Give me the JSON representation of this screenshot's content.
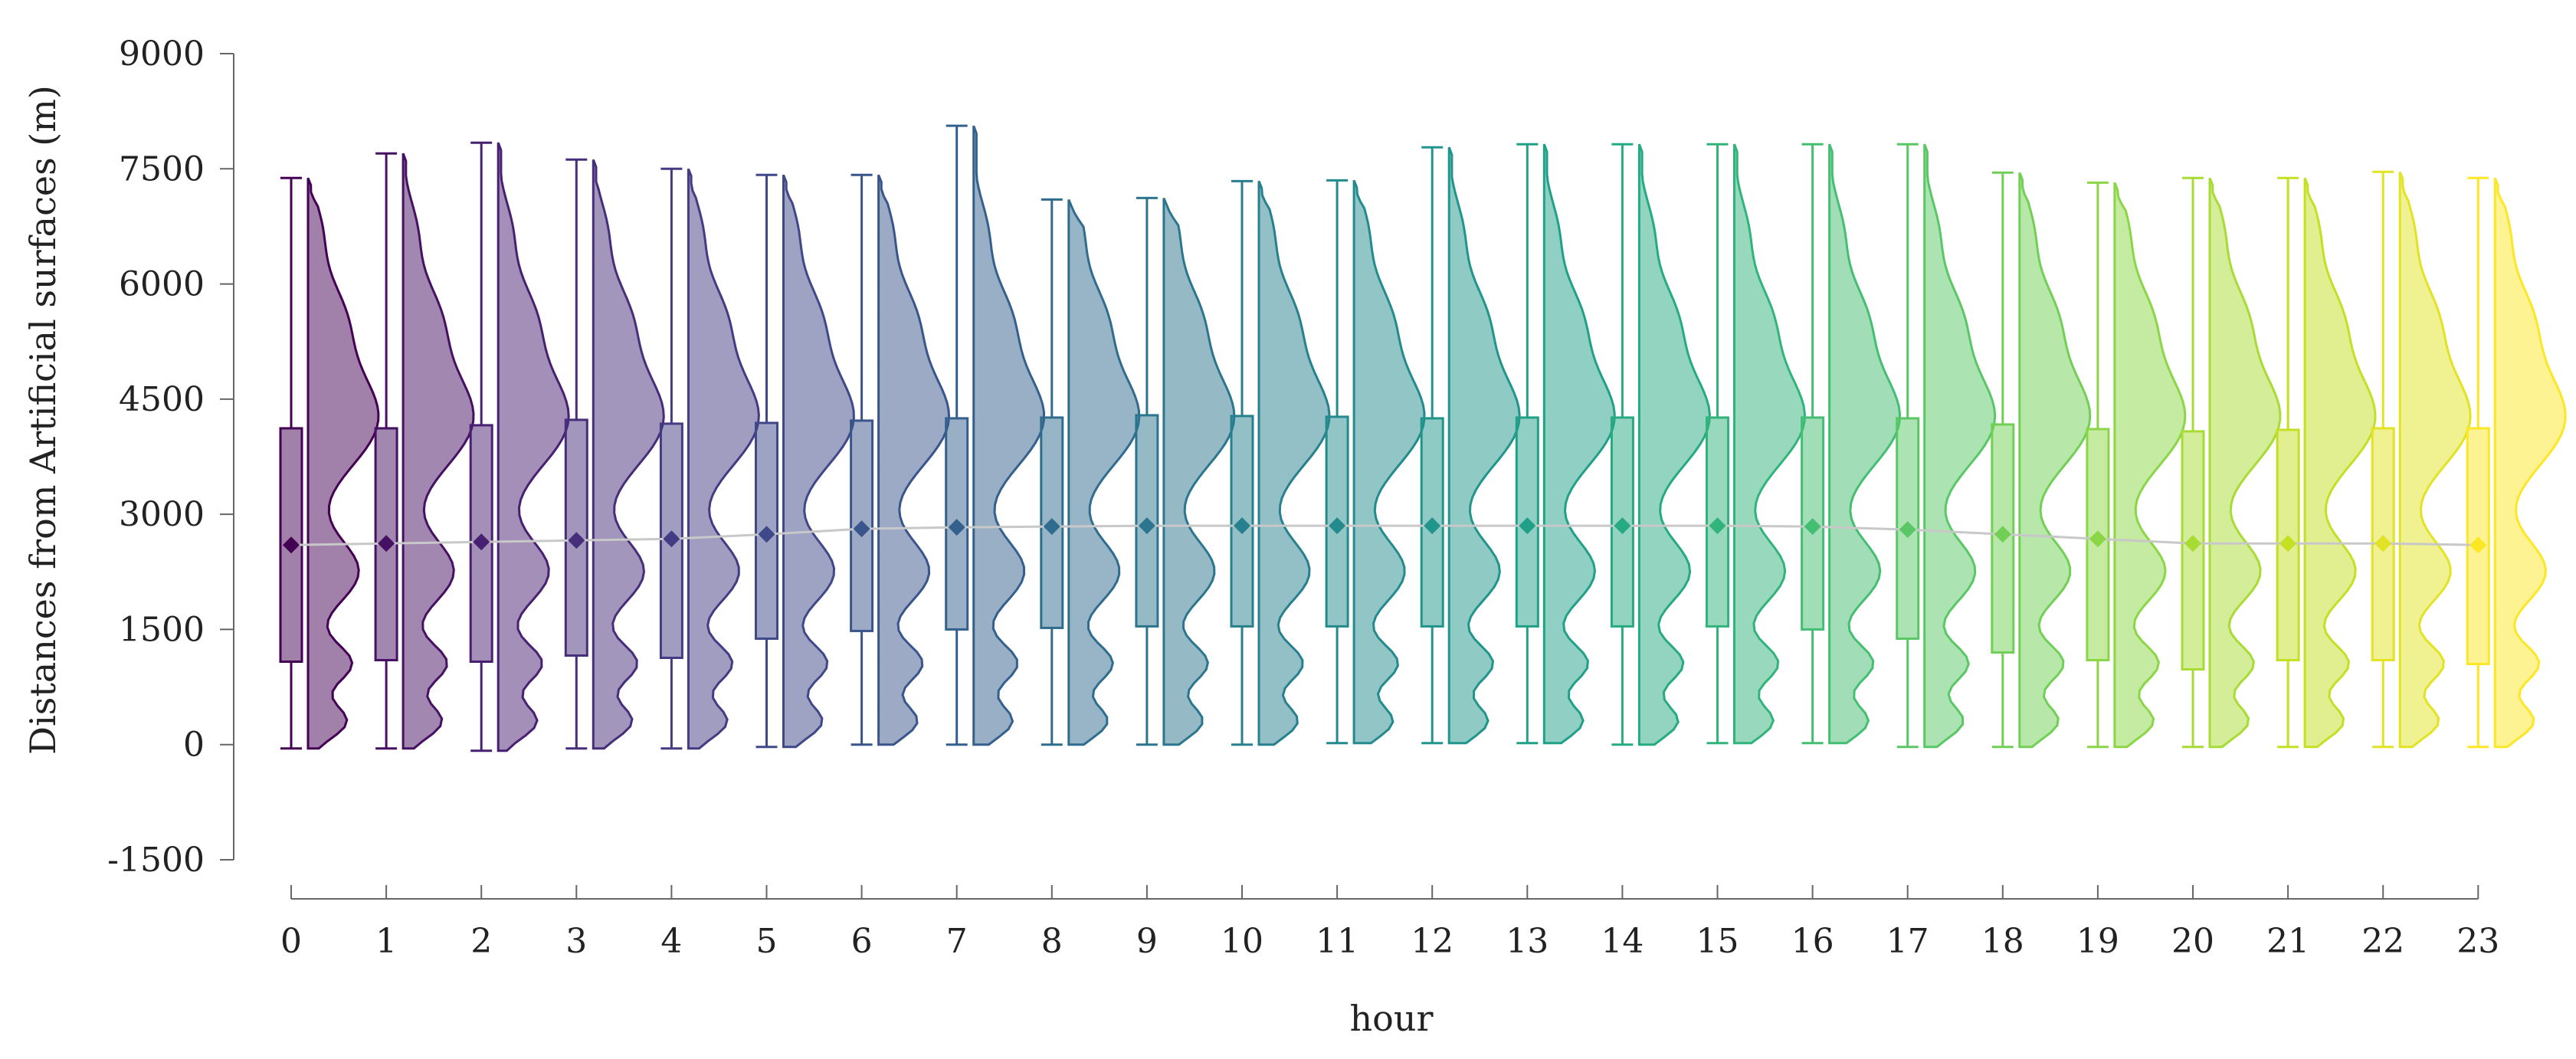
{
  "chart_data": {
    "type": "box-violin",
    "xlabel": "hour",
    "ylabel": "Distances from Artificial surfaces (m)",
    "ylim": [
      -1500,
      9000
    ],
    "y_ticks": [
      -1500,
      0,
      1500,
      3000,
      4500,
      6000,
      7500,
      9000
    ],
    "y_tick_labels": [
      "-1500",
      "0",
      "1500",
      "3000",
      "4500",
      "6000",
      "7500",
      "9000"
    ],
    "categories": [
      "0",
      "1",
      "2",
      "3",
      "4",
      "5",
      "6",
      "7",
      "8",
      "9",
      "10",
      "11",
      "12",
      "13",
      "14",
      "15",
      "16",
      "17",
      "18",
      "19",
      "20",
      "21",
      "22",
      "23"
    ],
    "whisker_low": [
      -50,
      -50,
      -80,
      -50,
      -50,
      -30,
      0,
      0,
      0,
      0,
      0,
      20,
      20,
      20,
      0,
      20,
      20,
      -30,
      -30,
      -30,
      -30,
      -30,
      -30,
      -30
    ],
    "q1": [
      1080,
      1100,
      1080,
      1160,
      1130,
      1380,
      1480,
      1500,
      1520,
      1540,
      1540,
      1540,
      1540,
      1540,
      1540,
      1540,
      1500,
      1380,
      1200,
      1100,
      980,
      1100,
      1100,
      1050
    ],
    "mean": [
      2600,
      2620,
      2640,
      2660,
      2680,
      2740,
      2810,
      2830,
      2840,
      2850,
      2850,
      2850,
      2850,
      2850,
      2850,
      2850,
      2840,
      2800,
      2740,
      2680,
      2620,
      2620,
      2620,
      2600
    ],
    "q3": [
      4120,
      4120,
      4160,
      4230,
      4180,
      4190,
      4220,
      4250,
      4260,
      4290,
      4280,
      4270,
      4250,
      4260,
      4260,
      4260,
      4260,
      4250,
      4170,
      4110,
      4080,
      4100,
      4120,
      4120
    ],
    "whisker_high": [
      7380,
      7700,
      7840,
      7620,
      7500,
      7420,
      7420,
      8060,
      7100,
      7120,
      7340,
      7350,
      7780,
      7820,
      7820,
      7820,
      7820,
      7820,
      7450,
      7320,
      7380,
      7380,
      7460,
      7380
    ],
    "violin_max": [
      7380,
      7700,
      7840,
      7620,
      7500,
      7420,
      7420,
      8060,
      7100,
      7120,
      7340,
      7350,
      7780,
      7820,
      7820,
      7820,
      7820,
      7820,
      7450,
      7320,
      7380,
      7380,
      7460,
      7380
    ],
    "colors": [
      "#440154",
      "#482173",
      "#433e85",
      "#38588c",
      "#2d708e",
      "#25858e",
      "#1e9b8a",
      "#2ab07f",
      "#52c569",
      "#86d549",
      "#c2df23",
      "#fde725"
    ],
    "trend_line_color": "#c8c8c8",
    "grid": false,
    "legend": "none"
  }
}
